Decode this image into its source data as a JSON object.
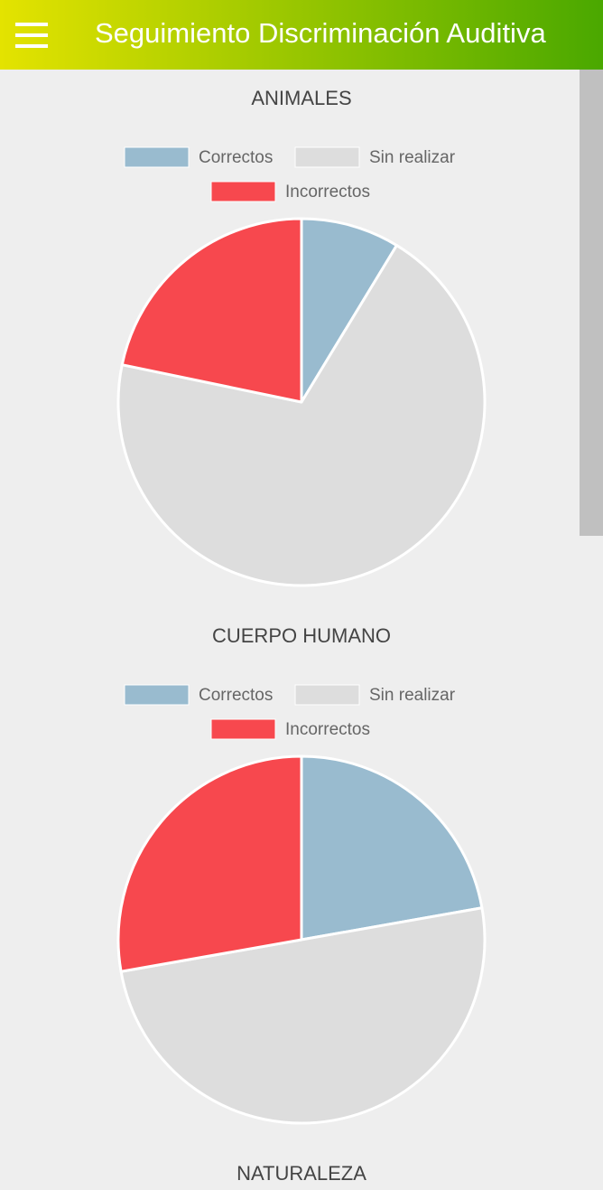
{
  "header": {
    "title": "Seguimiento Discriminación Auditiva"
  },
  "chart_data": [
    {
      "type": "pie",
      "title": "ANIMALES",
      "categories": [
        "Correctos",
        "Sin realizar",
        "Incorrectos"
      ],
      "colors": [
        "#99bbcf",
        "#dddddd",
        "#f7484e"
      ],
      "values": [
        2,
        16,
        5
      ]
    },
    {
      "type": "pie",
      "title": "CUERPO HUMANO",
      "categories": [
        "Correctos",
        "Sin realizar",
        "Incorrectos"
      ],
      "colors": [
        "#99bbcf",
        "#dddddd",
        "#f7484e"
      ],
      "values": [
        4,
        9,
        5
      ]
    },
    {
      "type": "pie",
      "title": "NATURALEZA"
    }
  ]
}
